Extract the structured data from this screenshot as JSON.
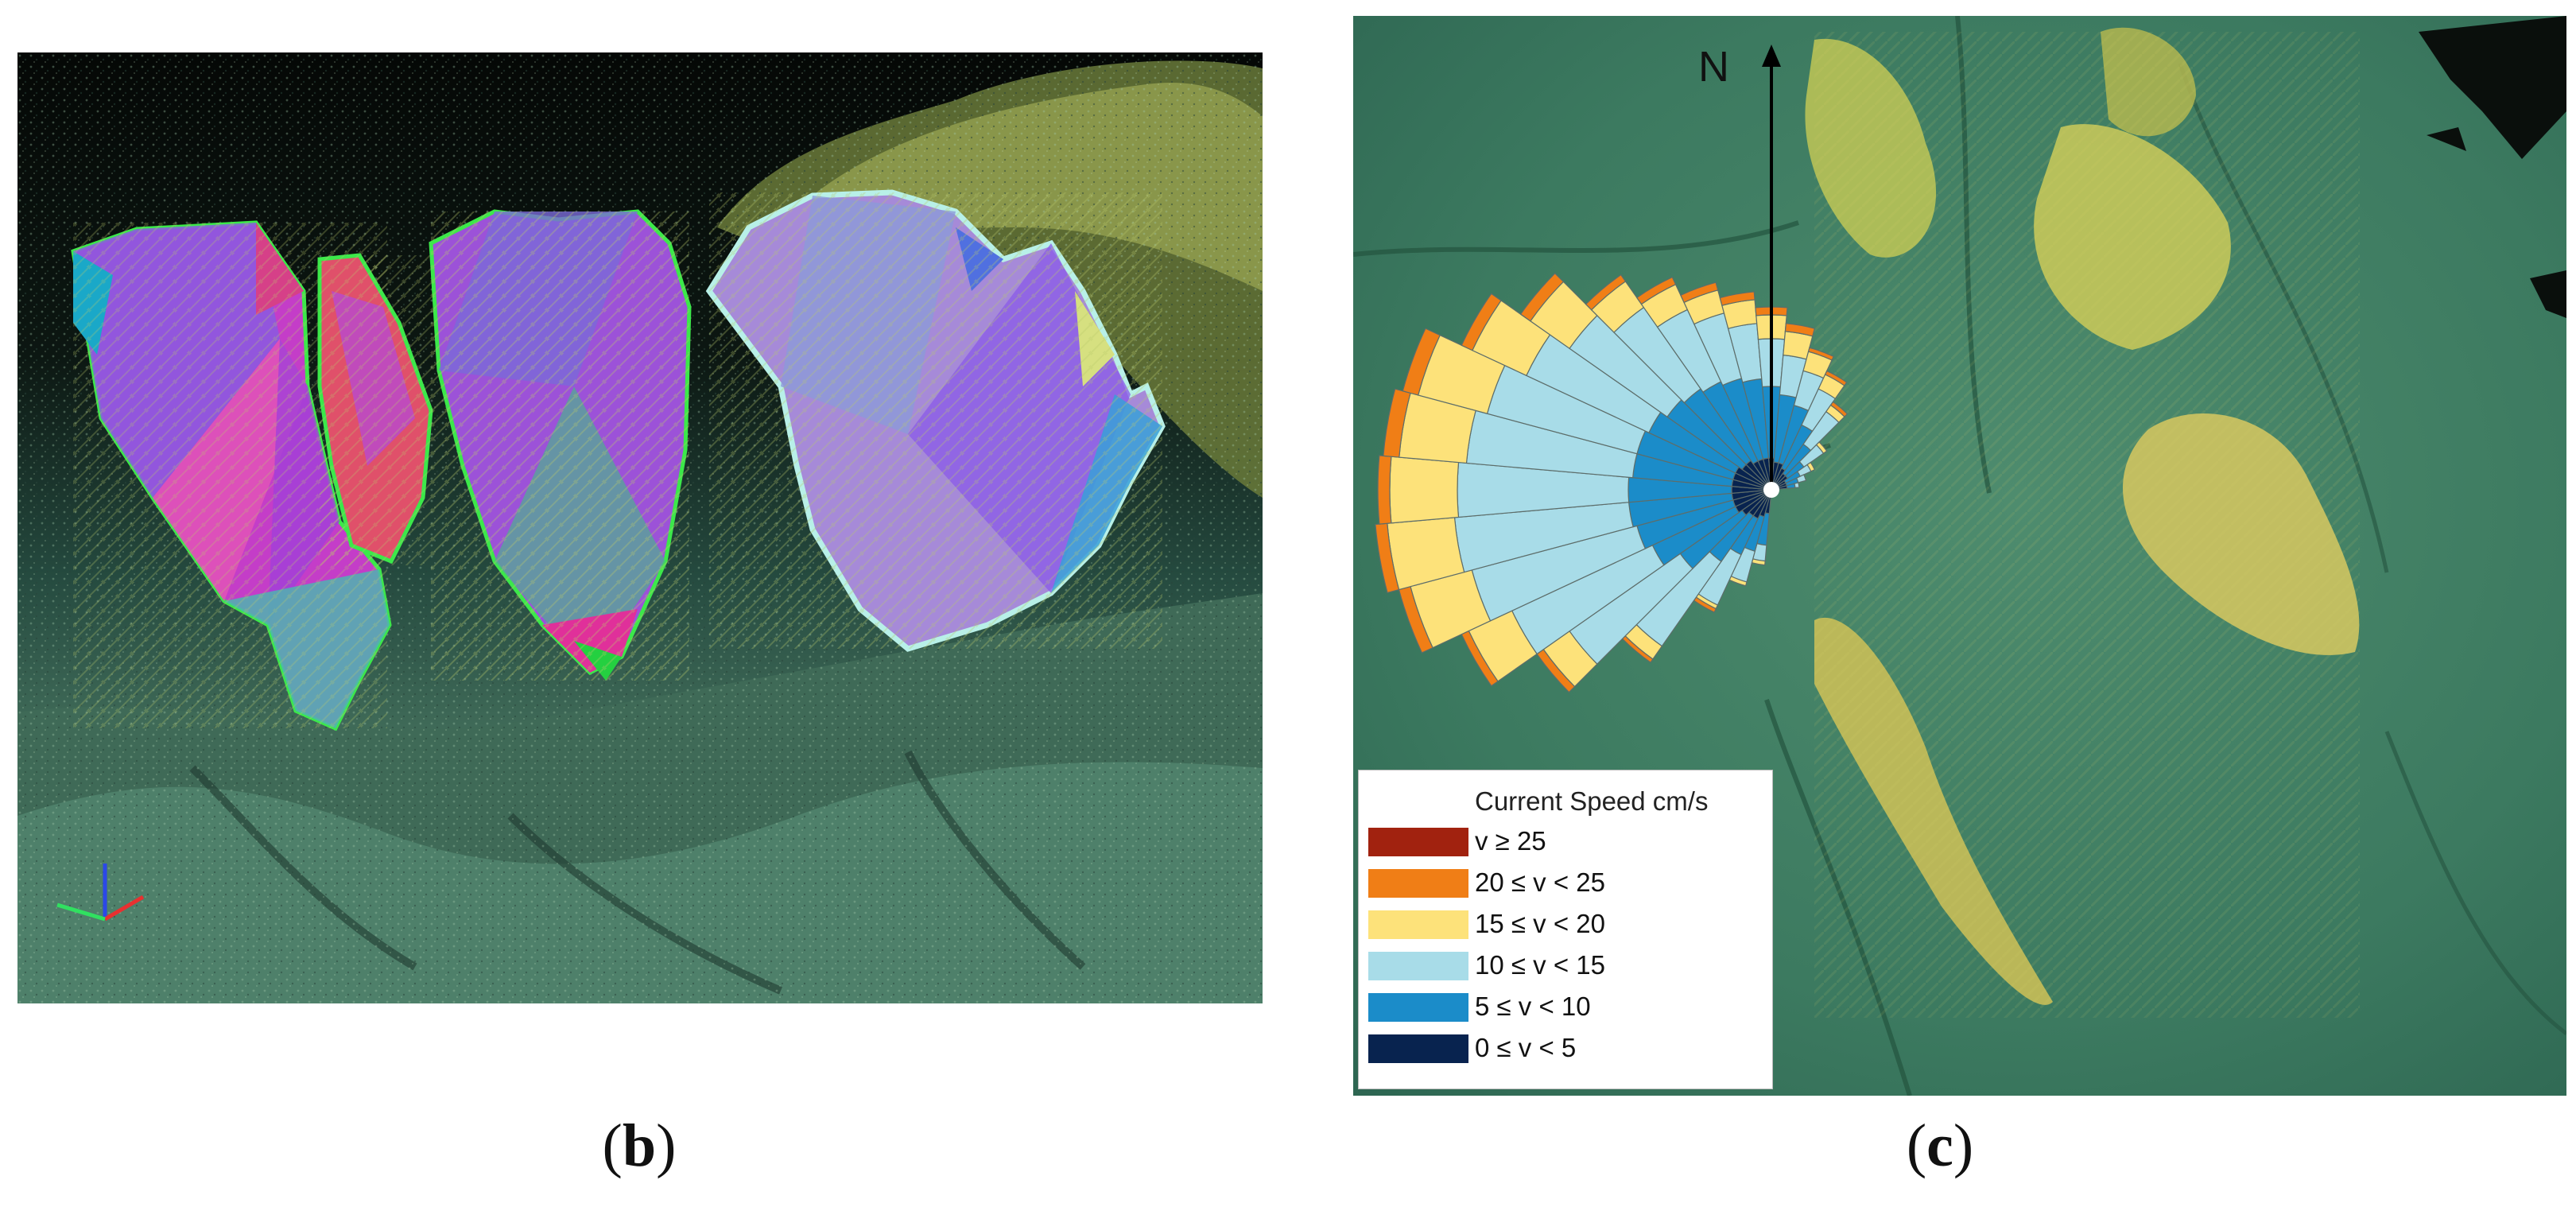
{
  "captions": {
    "b_open": "(",
    "b_letter": "b",
    "b_close": ")",
    "c_open": "(",
    "c_letter": "c",
    "c_close": ")"
  },
  "panel_c": {
    "north_label": "N",
    "legend": {
      "title": "Current Speed cm/s",
      "items": [
        {
          "label": "v ≥ 25",
          "color": "#a1220f"
        },
        {
          "label": "20 ≤ v < 25",
          "color": "#f07e16"
        },
        {
          "label": "15 ≤ v < 20",
          "color": "#fde27a"
        },
        {
          "label": "10 ≤ v < 15",
          "color": "#a8dce8"
        },
        {
          "label": "5 ≤ v < 10",
          "color": "#1b8cc9"
        },
        {
          "label": "0 ≤ v < 5",
          "color": "#08234f"
        }
      ]
    },
    "rose": {
      "bin_colors": [
        "#08234f",
        "#1b8cc9",
        "#a8dce8",
        "#fde27a",
        "#f07e16",
        "#a1220f"
      ],
      "directions_deg": [
        190,
        200,
        210,
        220,
        230,
        240,
        250,
        260,
        270,
        280,
        290,
        300,
        310,
        320,
        330,
        340,
        350,
        0,
        10,
        20,
        30,
        40,
        50,
        60,
        70,
        80
      ],
      "cumulative_radii": [
        [
          0.06,
          0.14,
          0.18,
          0.19,
          0.19,
          0.19
        ],
        [
          0.07,
          0.16,
          0.24,
          0.25,
          0.25,
          0.25
        ],
        [
          0.08,
          0.18,
          0.32,
          0.33,
          0.34,
          0.34
        ],
        [
          0.08,
          0.22,
          0.48,
          0.52,
          0.53,
          0.53
        ],
        [
          0.09,
          0.28,
          0.62,
          0.7,
          0.72,
          0.72
        ],
        [
          0.1,
          0.33,
          0.72,
          0.84,
          0.86,
          0.86
        ],
        [
          0.1,
          0.35,
          0.78,
          0.94,
          0.97,
          0.97
        ],
        [
          0.1,
          0.36,
          0.8,
          0.97,
          1.0,
          1.0
        ],
        [
          0.1,
          0.36,
          0.79,
          0.96,
          0.99,
          0.99
        ],
        [
          0.1,
          0.35,
          0.77,
          0.94,
          0.98,
          0.98
        ],
        [
          0.1,
          0.35,
          0.74,
          0.92,
          0.96,
          0.96
        ],
        [
          0.1,
          0.34,
          0.68,
          0.83,
          0.86,
          0.86
        ],
        [
          0.09,
          0.32,
          0.62,
          0.74,
          0.77,
          0.77
        ],
        [
          0.09,
          0.31,
          0.56,
          0.64,
          0.66,
          0.66
        ],
        [
          0.08,
          0.3,
          0.5,
          0.57,
          0.59,
          0.59
        ],
        [
          0.08,
          0.29,
          0.46,
          0.52,
          0.54,
          0.54
        ],
        [
          0.08,
          0.28,
          0.42,
          0.48,
          0.5,
          0.5
        ],
        [
          0.08,
          0.26,
          0.38,
          0.44,
          0.46,
          0.46
        ],
        [
          0.07,
          0.24,
          0.34,
          0.4,
          0.42,
          0.42
        ],
        [
          0.07,
          0.22,
          0.31,
          0.36,
          0.37,
          0.37
        ],
        [
          0.06,
          0.18,
          0.28,
          0.32,
          0.33,
          0.33
        ],
        [
          0.05,
          0.14,
          0.24,
          0.26,
          0.27,
          0.27
        ],
        [
          0.05,
          0.1,
          0.16,
          0.17,
          0.17,
          0.17
        ],
        [
          0.04,
          0.08,
          0.11,
          0.12,
          0.12,
          0.12
        ],
        [
          0.04,
          0.07,
          0.09,
          0.09,
          0.09,
          0.09
        ],
        [
          0.04,
          0.06,
          0.07,
          0.07,
          0.07,
          0.07
        ]
      ]
    }
  }
}
